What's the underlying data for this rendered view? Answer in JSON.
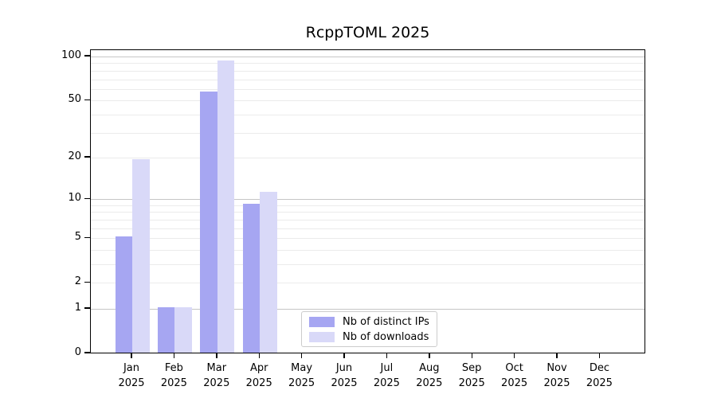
{
  "figure": {
    "background": "#ffffff"
  },
  "chart_data": {
    "type": "bar",
    "title": "RcppTOML 2025",
    "categories": [
      "Jan",
      "Feb",
      "Mar",
      "Apr",
      "May",
      "Jun",
      "Jul",
      "Aug",
      "Sep",
      "Oct",
      "Nov",
      "Dec"
    ],
    "year_label": "2025",
    "series": [
      {
        "name": "Nb of distinct IPs",
        "color": "#a6a6f2",
        "values": [
          5,
          1,
          56,
          9,
          0,
          0,
          0,
          0,
          0,
          0,
          0,
          0
        ]
      },
      {
        "name": "Nb of downloads",
        "color": "#d9d9f8",
        "values": [
          19,
          1,
          92,
          11,
          0,
          0,
          0,
          0,
          0,
          0,
          0,
          0
        ]
      }
    ],
    "yscale": "log1p",
    "ylim": [
      0,
      110
    ],
    "yticks": [
      0,
      1,
      2,
      5,
      10,
      20,
      50,
      100
    ],
    "gridlines": {
      "major": [
        1,
        10,
        100
      ],
      "minor": [
        2,
        3,
        4,
        5,
        6,
        7,
        8,
        9,
        20,
        30,
        40,
        50,
        60,
        70,
        80,
        90
      ]
    },
    "grid": true,
    "legend_position": "inside-bottom-center"
  },
  "colors": {
    "axis": "#000000",
    "text": "#000000",
    "grid_major": "#c6c6c6",
    "grid_minor": "#ebebeb",
    "legend_border": "#cccccc",
    "bar_distinct_ips": "#a6a6f2",
    "bar_downloads": "#d9d9f8",
    "background": "#ffffff"
  }
}
